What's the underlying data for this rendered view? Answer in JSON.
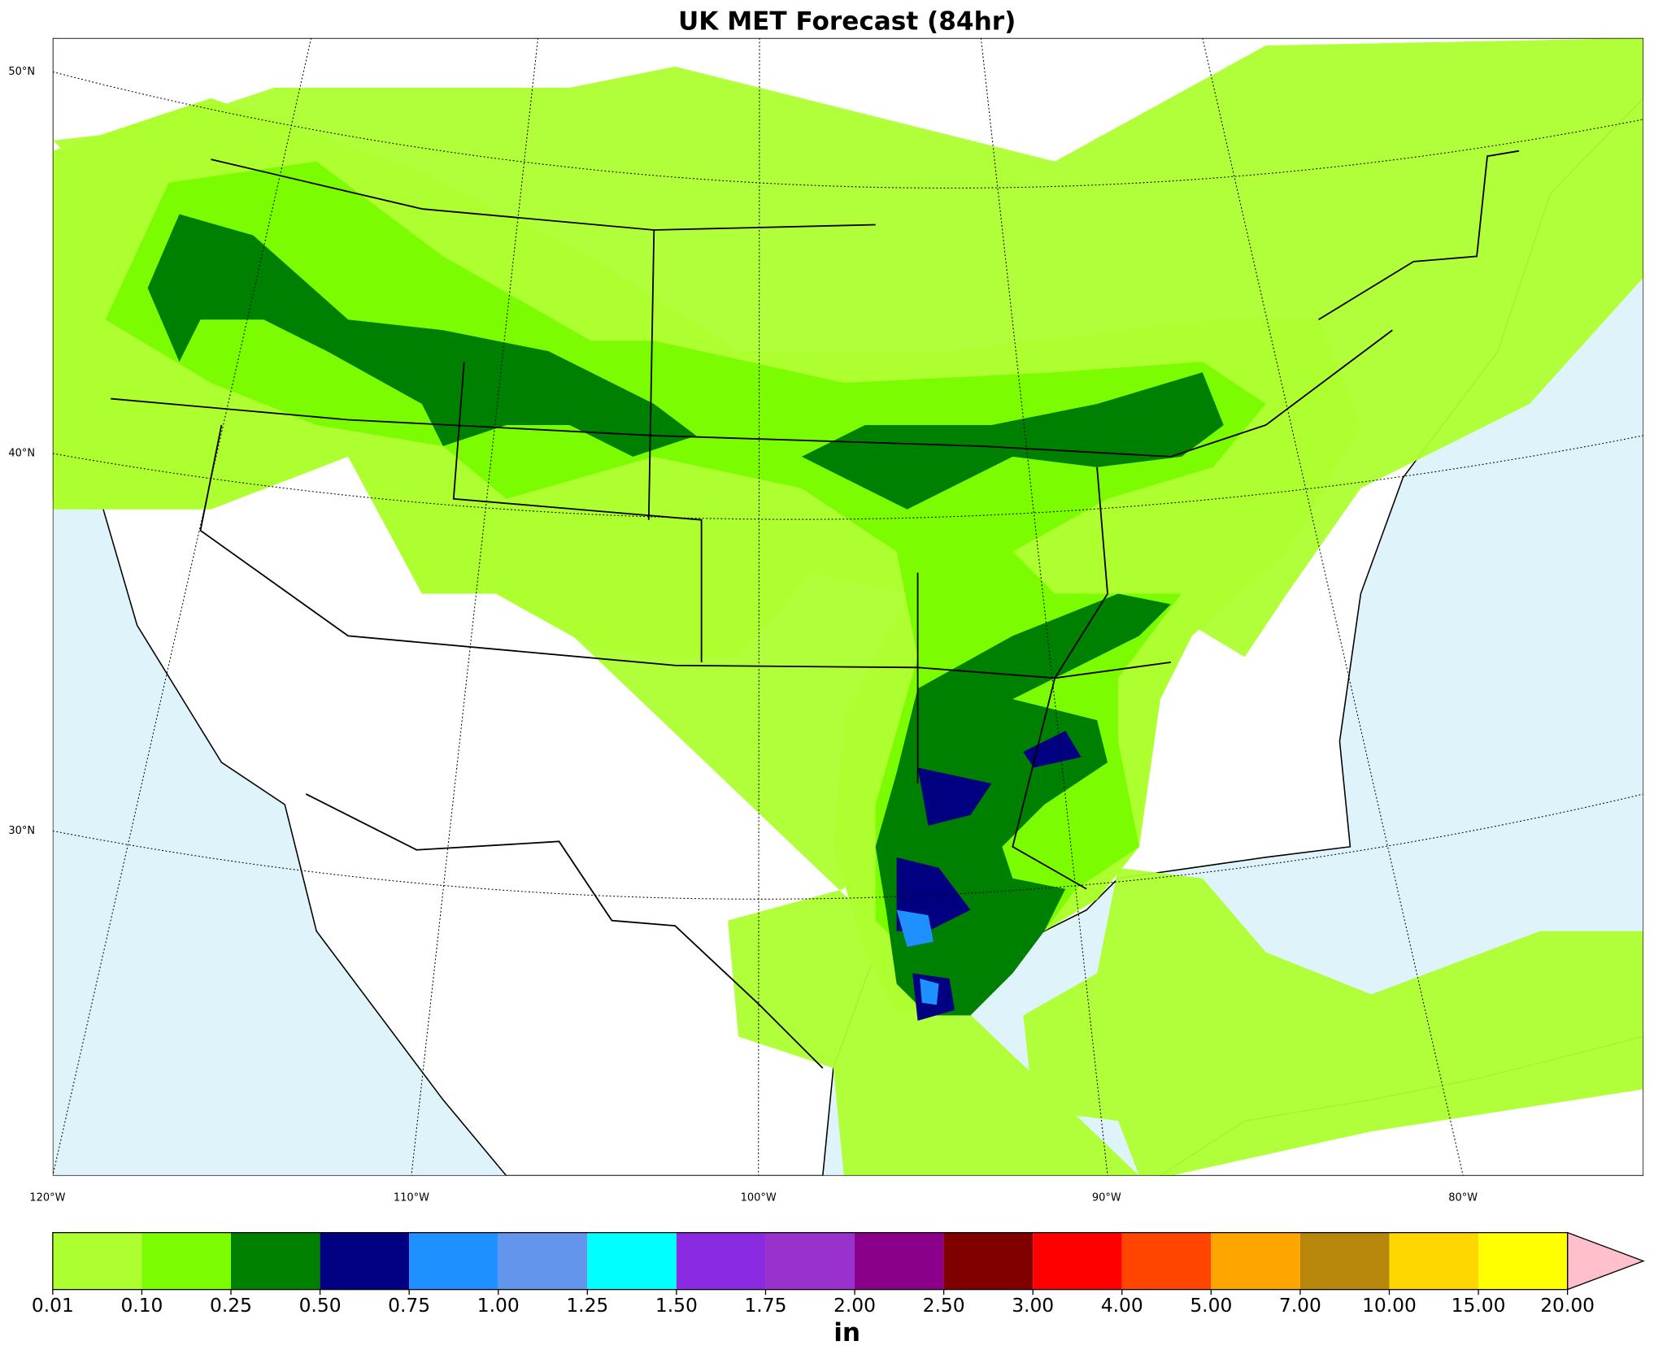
{
  "title": "UK MET Forecast (84hr)",
  "map": {
    "lat_labels": [
      "50°N",
      "40°N",
      "30°N"
    ],
    "lon_labels": [
      "120°W",
      "110°W",
      "100°W",
      "90°W",
      "80°W"
    ]
  },
  "colorbar": {
    "unit": "in",
    "levels": [
      {
        "value": 0.01,
        "label": "0.01"
      },
      {
        "value": 0.1,
        "label": "0.10"
      },
      {
        "value": 0.25,
        "label": "0.25"
      },
      {
        "value": 0.5,
        "label": "0.50"
      },
      {
        "value": 0.75,
        "label": "0.75"
      },
      {
        "value": 1,
        "label": "1.00"
      },
      {
        "value": 1.25,
        "label": "1.25"
      },
      {
        "value": 1.5,
        "label": "1.50"
      },
      {
        "value": 1.75,
        "label": "1.75"
      },
      {
        "value": 2,
        "label": "2.00"
      },
      {
        "value": 2.5,
        "label": "2.50"
      },
      {
        "value": 3,
        "label": "3.00"
      },
      {
        "value": 4,
        "label": "4.00"
      },
      {
        "value": 5,
        "label": "5.00"
      },
      {
        "value": 7,
        "label": "7.00"
      },
      {
        "value": 10,
        "label": "10.00"
      },
      {
        "value": 15,
        "label": "15.00"
      },
      {
        "value": 20,
        "label": "20.00"
      }
    ],
    "colors": [
      "#adff2f",
      "#7cfc00",
      "#008000",
      "#000080",
      "#1e90ff",
      "#6495ed",
      "#00ffff",
      "#8a2be2",
      "#9932cc",
      "#8b008b",
      "#800000",
      "#ff0000",
      "#ff4500",
      "#ffa500",
      "#b8860b",
      "#ffd700",
      "#ffff00"
    ],
    "extend_color": "#ffc0cb"
  }
}
